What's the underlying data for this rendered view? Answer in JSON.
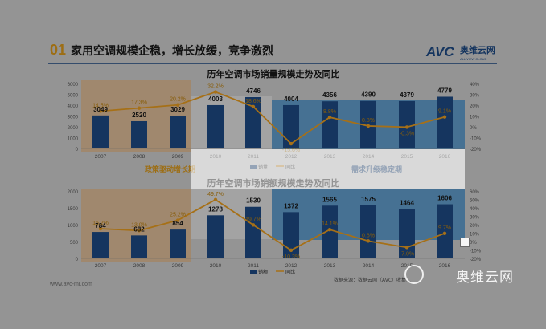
{
  "header": {
    "number": "01",
    "title": "家用空调规模企稳，增长放缓，竞争激烈",
    "logo_text": "AVC",
    "logo_cn": "奥维云网",
    "logo_sub": "ALL VIEW CLOUD"
  },
  "footer": {
    "website": "www.avc-mr.com",
    "source": "数据来源：数据云网（AVC）收集…",
    "watermark": "奥维云网"
  },
  "colors": {
    "bar": "#1f4e8c",
    "line": "#f5a623",
    "policy_band": "#f3c28a",
    "demand_band": "#4a9ad8",
    "highlight": "#ffffff"
  },
  "chart_data": [
    {
      "type": "bar",
      "title": "历年空调市场销量规模走势及同比",
      "categories": [
        "2007",
        "2008",
        "2009",
        "2010",
        "2011",
        "2012",
        "2013",
        "2014",
        "2015",
        "2016"
      ],
      "series": [
        {
          "name": "销量",
          "values": [
            3049,
            2520,
            3029,
            4003,
            4746,
            4004,
            4356,
            4390,
            4379,
            4779
          ]
        },
        {
          "name": "同比",
          "values": [
            14.5,
            17.3,
            20.2,
            32.2,
            18.6,
            -15.6,
            8.8,
            0.8,
            -0.3,
            9.1
          ]
        }
      ],
      "value_labels": [
        "3049",
        "2520",
        "3029",
        "4003",
        "4746",
        "4004",
        "4356",
        "4390",
        "4379",
        "4779"
      ],
      "pct_labels": [
        "14.5%",
        "17.3%",
        "20.2%",
        "32.2%",
        "18.6%",
        "-15.6%",
        "8.8%",
        "0.8%",
        "-0.3%",
        "9.1%"
      ],
      "yticks_left": [
        "0",
        "1000",
        "2000",
        "3000",
        "4000",
        "5000",
        "6000"
      ],
      "yticks_right": [
        "-20%",
        "-10%",
        "0%",
        "10%",
        "20%",
        "30%",
        "40%"
      ],
      "ylim": [
        0,
        6000
      ],
      "y2lim": [
        -20,
        40
      ],
      "legend": [
        "销量",
        "同比"
      ],
      "annotations": [
        "政策驱动增长期",
        "需求升级稳定期"
      ]
    },
    {
      "type": "bar",
      "title": "历年空调市场销额规模走势及同比",
      "categories": [
        "2007",
        "2008",
        "2009",
        "2010",
        "2011",
        "2012",
        "2013",
        "2014",
        "2015",
        "2016"
      ],
      "series": [
        {
          "name": "销额",
          "values": [
            784,
            682,
            854,
            1278,
            1530,
            1372,
            1565,
            1575,
            1464,
            1606
          ]
        },
        {
          "name": "同比",
          "values": [
            15.2,
            13.0,
            25.2,
            49.7,
            19.7,
            -10.3,
            14.1,
            0.6,
            -7.0,
            9.7
          ]
        }
      ],
      "value_labels": [
        "784",
        "682",
        "854",
        "1278",
        "1530",
        "1372",
        "1565",
        "1575",
        "1464",
        "1606"
      ],
      "pct_labels": [
        "15.2%",
        "13.0%",
        "25.2%",
        "49.7%",
        "19.7%",
        "-10.3%",
        "14.1%",
        "0.6%",
        "-7.0%",
        "9.7%"
      ],
      "yticks_left": [
        "0",
        "500",
        "1000",
        "1500",
        "2000"
      ],
      "yticks_right": [
        "-20%",
        "-10%",
        "0%",
        "10%",
        "20%",
        "30%",
        "40%",
        "50%",
        "60%"
      ],
      "ylim": [
        0,
        2000
      ],
      "y2lim": [
        -20,
        60
      ],
      "legend": [
        "销额",
        "同比"
      ]
    }
  ]
}
